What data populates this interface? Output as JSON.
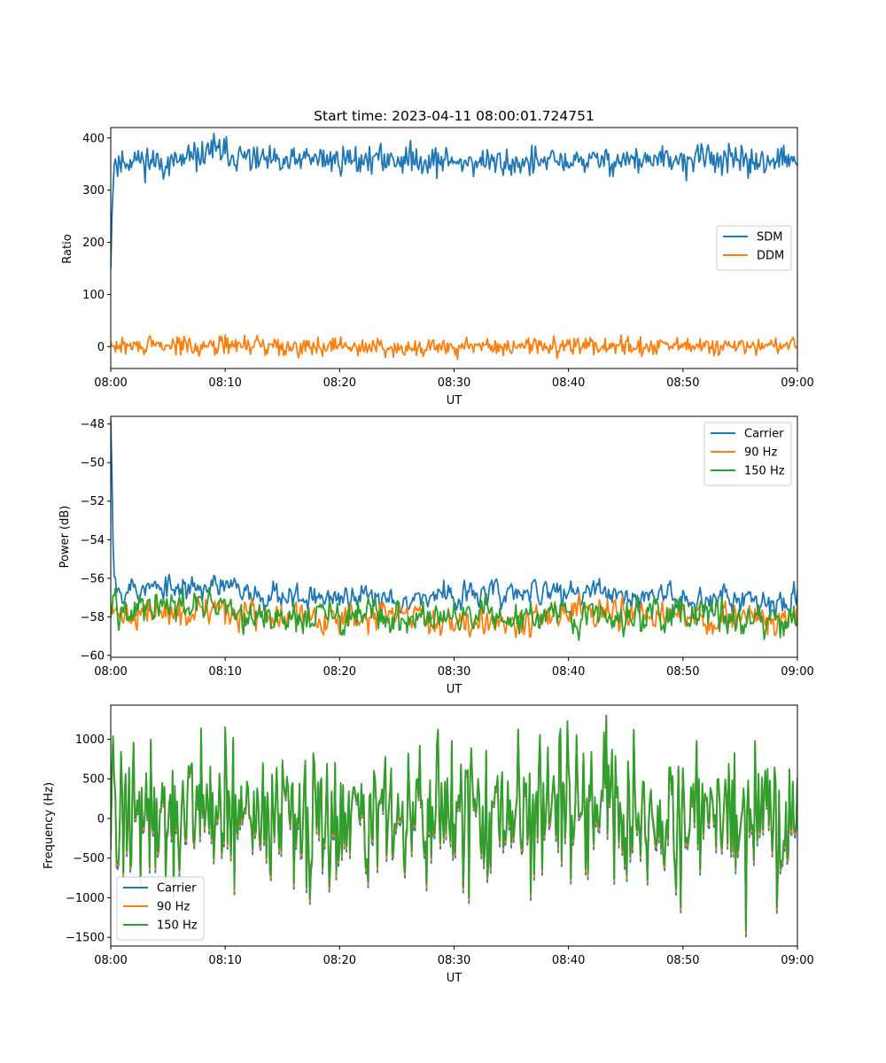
{
  "figure": {
    "title": "Start time: 2023-04-11 08:00:01.724751"
  },
  "colors": {
    "blue": "#1f77b4",
    "orange": "#ff7f0e",
    "green": "#2ca02c"
  },
  "chart_data": [
    {
      "type": "line",
      "title": "Start time: 2023-04-11 08:00:01.724751",
      "xlabel": "UT",
      "ylabel": "Ratio",
      "xlim": [
        "08:00",
        "09:00"
      ],
      "ylim": [
        -42,
        420
      ],
      "x_ticks": [
        "08:00",
        "08:10",
        "08:20",
        "08:30",
        "08:40",
        "08:50",
        "09:00"
      ],
      "y_ticks": [
        0,
        100,
        200,
        300,
        400
      ],
      "grid": false,
      "legend_position": "center-right",
      "series": [
        {
          "name": "SDM",
          "color": "#1f77b4",
          "trend": {
            "x": [
              "08:00:00",
              "08:00:10",
              "08:00:20",
              "08:00:40",
              "08:01:00",
              "08:02:00",
              "08:05:00",
              "08:08:00",
              "08:08:30",
              "08:12:00",
              "08:15:00",
              "08:17:00",
              "08:20:00",
              "08:25:00",
              "08:30:00",
              "08:35:00",
              "08:40:00",
              "08:45:00",
              "08:50:00",
              "08:52:00",
              "08:55:00",
              "08:59:00",
              "09:00:00"
            ],
            "y": [
              150,
              300,
              365,
              345,
              355,
              360,
              350,
              365,
              380,
              360,
              350,
              360,
              358,
              360,
              355,
              352,
              355,
              358,
              355,
              365,
              352,
              360,
              345
            ]
          },
          "noise_amplitude": 14
        },
        {
          "name": "DDM",
          "color": "#ff7f0e",
          "trend": {
            "x": [
              "08:00:00",
              "08:10:00",
              "08:20:00",
              "08:30:00",
              "08:40:00",
              "08:50:00",
              "09:00:00"
            ],
            "y": [
              0,
              3,
              0,
              -2,
              2,
              0,
              0
            ]
          },
          "noise_amplitude": 9
        }
      ]
    },
    {
      "type": "line",
      "title": "",
      "xlabel": "UT",
      "ylabel": "Power (dB)",
      "xlim": [
        "08:00",
        "09:00"
      ],
      "ylim": [
        -60.1,
        -47.6
      ],
      "x_ticks": [
        "08:00",
        "08:10",
        "08:20",
        "08:30",
        "08:40",
        "08:50",
        "09:00"
      ],
      "y_ticks": [
        -60,
        -58,
        -56,
        -54,
        -52,
        -50,
        -48
      ],
      "grid": false,
      "legend_position": "top-right",
      "series": [
        {
          "name": "Carrier",
          "color": "#1f77b4",
          "trend": {
            "x": [
              "08:00:00",
              "08:00:05",
              "08:00:15",
              "08:00:30",
              "08:01:00",
              "08:05:00",
              "08:08:00",
              "08:12:00",
              "08:15:00",
              "08:20:00",
              "08:25:00",
              "08:30:00",
              "08:35:00",
              "08:40:00",
              "08:45:00",
              "08:50:00",
              "08:55:00",
              "08:59:00",
              "09:00:00"
            ],
            "y": [
              -47.8,
              -50,
              -54.5,
              -56.3,
              -56.5,
              -56.6,
              -56.4,
              -56.7,
              -56.8,
              -57.1,
              -57,
              -56.9,
              -56.8,
              -56.7,
              -56.9,
              -57,
              -57,
              -57.2,
              -56.4
            ]
          },
          "noise_amplitude": 0.35
        },
        {
          "name": "90 Hz",
          "color": "#ff7f0e",
          "trend": {
            "x": [
              "08:00:00",
              "08:00:30",
              "08:05:00",
              "08:08:00",
              "08:12:00",
              "08:20:00",
              "08:30:00",
              "08:40:00",
              "08:45:00",
              "08:50:00",
              "08:55:00",
              "09:00:00"
            ],
            "y": [
              -57.9,
              -57.8,
              -57.9,
              -57.6,
              -58,
              -58.1,
              -58.1,
              -58,
              -57.9,
              -58,
              -58.2,
              -58
            ]
          },
          "noise_amplitude": 0.4
        },
        {
          "name": "150 Hz",
          "color": "#2ca02c",
          "trend": {
            "x": [
              "08:00:00",
              "08:00:15",
              "08:01:00",
              "08:05:00",
              "08:08:00",
              "08:12:00",
              "08:20:00",
              "08:30:00",
              "08:40:00",
              "08:45:00",
              "08:50:00",
              "08:55:00",
              "09:00:00"
            ],
            "y": [
              -57,
              -56.2,
              -57.7,
              -57.6,
              -57.5,
              -58,
              -58,
              -58.1,
              -58.1,
              -57.9,
              -57.8,
              -58.1,
              -58
            ]
          },
          "noise_amplitude": 0.45
        }
      ]
    },
    {
      "type": "line",
      "title": "",
      "xlabel": "UT",
      "ylabel": "Frequency (Hz)",
      "xlim": [
        "08:00",
        "09:00"
      ],
      "ylim": [
        -1610,
        1430
      ],
      "x_ticks": [
        "08:00",
        "08:10",
        "08:20",
        "08:30",
        "08:40",
        "08:50",
        "09:00"
      ],
      "y_ticks": [
        -1500,
        -1000,
        -500,
        0,
        500,
        1000
      ],
      "grid": false,
      "legend_position": "bottom-left",
      "series": [
        {
          "name": "Carrier",
          "color": "#1f77b4",
          "offset_from_150Hz": -70
        },
        {
          "name": "90 Hz",
          "color": "#ff7f0e",
          "offset_from_150Hz": -35
        },
        {
          "name": "150 Hz",
          "color": "#2ca02c",
          "trend": {
            "x": [
              "08:00:00",
              "08:10:00",
              "08:20:00",
              "08:30:00",
              "08:40:00",
              "08:50:00",
              "09:00:00"
            ],
            "y": [
              50,
              80,
              40,
              60,
              80,
              30,
              40
            ]
          },
          "noise_amplitude": 420,
          "extremes": {
            "x": [
              "08:00:10",
              "08:04:50",
              "08:10:40",
              "08:16:00",
              "08:19:40",
              "08:22:30",
              "08:27:00",
              "08:29:50",
              "08:31:20",
              "08:36:40",
              "08:38:10",
              "08:39:10",
              "08:43:20",
              "08:45:40",
              "08:49:50",
              "08:51:10",
              "08:55:30",
              "08:56:20"
            ],
            "y": [
              1040,
              -760,
              1020,
              -820,
              -700,
              -800,
              920,
              980,
              -1000,
              -960,
              900,
              1020,
              1300,
              1120,
              -1120,
              980,
              -1420,
              980
            ]
          }
        }
      ]
    }
  ]
}
